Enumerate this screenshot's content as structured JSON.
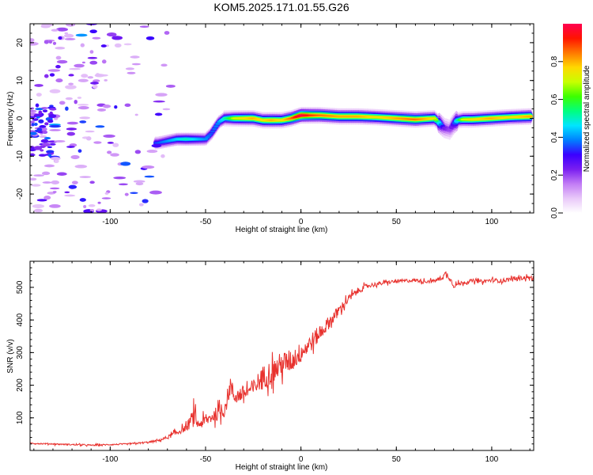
{
  "figure": {
    "title": "KOM5.2025.171.01.55.G26"
  },
  "chart_data": [
    {
      "type": "heatmap",
      "xlabel": "Height of straight line (km)",
      "ylabel": "Frequency (Hz)",
      "xlim": [
        -142,
        122
      ],
      "ylim": [
        -25,
        25
      ],
      "xticks": [
        -100,
        -50,
        0,
        50,
        100
      ],
      "yticks": [
        -20,
        -10,
        0,
        10,
        20
      ],
      "grid": false,
      "colorbar": {
        "label": "Normalized spectral amplitude",
        "range": [
          0,
          1
        ],
        "ticks": [
          0.0,
          0.2,
          0.4,
          0.6,
          0.8
        ],
        "colormap": [
          "#ffffff",
          "#e9c9f9",
          "#c27cf5",
          "#7a1ef0",
          "#3a00ff",
          "#0080ff",
          "#00e5ff",
          "#00ff7f",
          "#3cff00",
          "#c8ff00",
          "#ffd800",
          "#ff7800",
          "#ff1400",
          "#ff0050"
        ]
      },
      "ridge": {
        "name": "",
        "x": [
          -75,
          -70,
          -65,
          -60,
          -55,
          -50,
          -47,
          -43,
          -40,
          -37,
          -35,
          -30,
          -25,
          -20,
          -15,
          -10,
          -5,
          0,
          5,
          10,
          20,
          30,
          40,
          50,
          60,
          70,
          72,
          75,
          78,
          80,
          82,
          85,
          90,
          100,
          110,
          120
        ],
        "y": [
          -6.5,
          -6,
          -5.5,
          -5.5,
          -5.5,
          -5.5,
          -4,
          -1,
          0,
          0,
          0,
          0,
          0,
          -0.5,
          -0.5,
          -0.5,
          0,
          0.8,
          0.8,
          0.8,
          0.5,
          0.5,
          0.3,
          0,
          -0.3,
          0,
          -1,
          -2.5,
          -3,
          -1.5,
          -0.5,
          -0.3,
          -0.3,
          0,
          0.3,
          0.5
        ],
        "strength": [
          0.35,
          0.4,
          0.45,
          0.5,
          0.45,
          0.4,
          0.35,
          0.4,
          0.5,
          0.6,
          0.7,
          0.75,
          0.8,
          0.75,
          0.8,
          0.75,
          0.85,
          1,
          0.9,
          0.85,
          0.8,
          0.8,
          0.75,
          0.8,
          0.85,
          0.75,
          0.5,
          0.25,
          0.2,
          0.3,
          0.5,
          0.7,
          0.75,
          0.8,
          0.75,
          0.8
        ]
      }
    },
    {
      "type": "line",
      "xlabel": "Height of straight line (km)",
      "ylabel": "SNR (v/v)",
      "xlim": [
        -142,
        122
      ],
      "ylim": [
        0,
        580
      ],
      "xticks": [
        -100,
        -50,
        0,
        50,
        100
      ],
      "yticks": [
        100,
        200,
        300,
        400,
        500
      ],
      "grid": false,
      "series": [
        {
          "name": "",
          "color": "#e8322e",
          "x": [
            -142,
            -130,
            -120,
            -110,
            -100,
            -90,
            -80,
            -75,
            -70,
            -65,
            -60,
            -56,
            -54,
            -50,
            -45,
            -40,
            -37,
            -35,
            -30,
            -25,
            -20,
            -15,
            -10,
            -5,
            0,
            5,
            10,
            15,
            20,
            25,
            30,
            35,
            40,
            45,
            50,
            55,
            60,
            65,
            70,
            74,
            76,
            78,
            80,
            85,
            90,
            95,
            100,
            105,
            110,
            115,
            120,
            122
          ],
          "y": [
            22,
            20,
            18,
            16,
            18,
            20,
            25,
            30,
            40,
            55,
            70,
            105,
            80,
            90,
            110,
            125,
            200,
            165,
            175,
            190,
            225,
            240,
            265,
            275,
            300,
            330,
            360,
            395,
            430,
            465,
            490,
            505,
            510,
            515,
            518,
            520,
            522,
            518,
            520,
            530,
            540,
            530,
            505,
            515,
            520,
            518,
            522,
            520,
            525,
            528,
            530,
            528
          ],
          "noise": [
            3,
            3,
            3,
            3,
            3,
            3,
            4,
            5,
            8,
            12,
            16,
            45,
            22,
            25,
            30,
            35,
            45,
            35,
            35,
            40,
            50,
            55,
            55,
            50,
            45,
            40,
            35,
            28,
            22,
            18,
            14,
            10,
            9,
            8,
            8,
            8,
            8,
            8,
            8,
            10,
            20,
            12,
            10,
            9,
            8,
            8,
            9,
            9,
            9,
            9,
            9,
            9
          ]
        }
      ]
    }
  ]
}
